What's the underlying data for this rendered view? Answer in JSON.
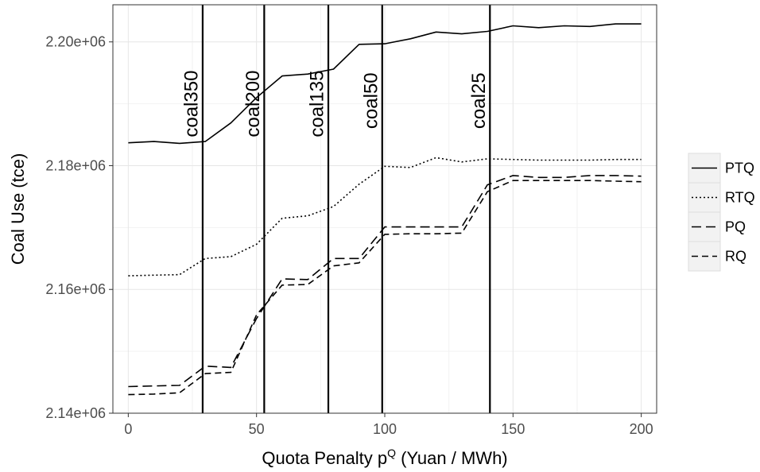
{
  "chart_data": {
    "type": "line",
    "xlabel": "Quota Penalty p",
    "xlabel_superscript": "Q",
    "xlabel_suffix": " (Yuan / MWh)",
    "ylabel": "Coal Use (tce)",
    "xlim": [
      -6,
      206
    ],
    "ylim": [
      2140000,
      2206000
    ],
    "x_ticks": [
      0,
      50,
      100,
      150,
      200
    ],
    "x_tick_labels": [
      "0",
      "50",
      "100",
      "150",
      "200"
    ],
    "y_ticks": [
      2140000,
      2160000,
      2180000,
      2200000
    ],
    "y_tick_labels": [
      "2.14e+06",
      "2.16e+06",
      "2.18e+06",
      "2.20e+06"
    ],
    "grid": true,
    "legend_position": "right",
    "x": [
      0,
      10,
      20,
      30,
      40,
      50,
      60,
      70,
      80,
      90,
      100,
      110,
      120,
      130,
      140,
      150,
      160,
      170,
      180,
      190,
      200
    ],
    "series": [
      {
        "name": "PTQ",
        "dash": "solid",
        "values": [
          2183700,
          2183900,
          2183600,
          2183900,
          2186900,
          2191000,
          2194500,
          2194800,
          2195600,
          2199600,
          2199700,
          2200500,
          2201600,
          2201300,
          2201700,
          2202600,
          2202300,
          2202600,
          2202500,
          2202900,
          2202900
        ]
      },
      {
        "name": "RTQ",
        "dash": "dotted",
        "values": [
          2162200,
          2162300,
          2162400,
          2165000,
          2165300,
          2167300,
          2171500,
          2171900,
          2173400,
          2177000,
          2179900,
          2179700,
          2181300,
          2180600,
          2181100,
          2181000,
          2180900,
          2180900,
          2180900,
          2181000,
          2181000
        ]
      },
      {
        "name": "PQ",
        "dash": "longdash",
        "values": [
          2144300,
          2144400,
          2144500,
          2147600,
          2147400,
          2155300,
          2161700,
          2161600,
          2165000,
          2165000,
          2170100,
          2170100,
          2170100,
          2170100,
          2176900,
          2178400,
          2178100,
          2178100,
          2178400,
          2178400,
          2178300
        ]
      },
      {
        "name": "RQ",
        "dash": "dashed",
        "values": [
          2143000,
          2143100,
          2143300,
          2146400,
          2146600,
          2155900,
          2160700,
          2160800,
          2163800,
          2164300,
          2168900,
          2169000,
          2169000,
          2169100,
          2175800,
          2177600,
          2177600,
          2177600,
          2177600,
          2177500,
          2177400
        ]
      }
    ],
    "vertical_lines": [
      {
        "x": 29,
        "label": "coal350",
        "label_y": 2190000
      },
      {
        "x": 53,
        "label": "coal200",
        "label_y": 2190000
      },
      {
        "x": 78,
        "label": "coal135",
        "label_y": 2190000
      },
      {
        "x": 99,
        "label": "coal50",
        "label_y": 2190500
      },
      {
        "x": 141,
        "label": "coal25",
        "label_y": 2190500
      }
    ]
  }
}
